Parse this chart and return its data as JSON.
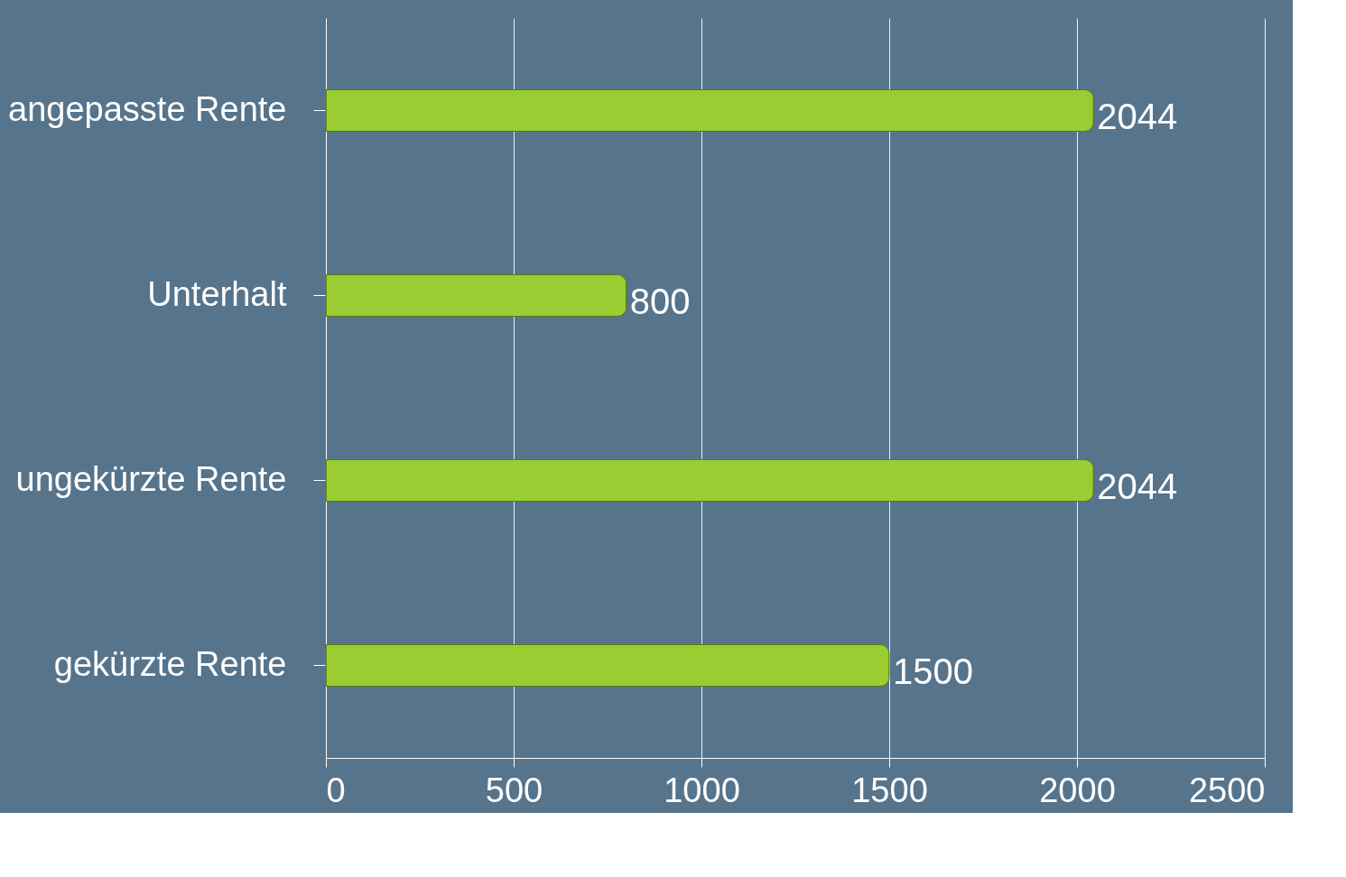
{
  "chart_data": {
    "type": "bar",
    "orientation": "horizontal",
    "categories": [
      "angepasste Rente",
      "Unterhalt",
      "ungekürzte Rente",
      "gekürzte Rente"
    ],
    "values": [
      2044,
      800,
      2044,
      1500
    ],
    "color": "#9acd32",
    "xlim": [
      0,
      2500
    ],
    "xticks": [
      0,
      500,
      1000,
      1500,
      2000,
      2500
    ],
    "grid": "x",
    "data_labels": true
  }
}
